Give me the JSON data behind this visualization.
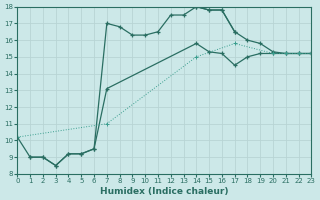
{
  "xlabel": "Humidex (Indice chaleur)",
  "bg_color": "#cce8e8",
  "grid_color": "#c0d8d8",
  "line_color": "#2a6e62",
  "dot_line_color": "#3a9e8e",
  "xlim": [
    0,
    23
  ],
  "ylim": [
    8,
    18
  ],
  "xticks": [
    0,
    1,
    2,
    3,
    4,
    5,
    6,
    7,
    8,
    9,
    10,
    11,
    12,
    13,
    14,
    15,
    16,
    17,
    18,
    19,
    20,
    21,
    22,
    23
  ],
  "yticks": [
    8,
    9,
    10,
    11,
    12,
    13,
    14,
    15,
    16,
    17,
    18
  ],
  "curve1": {
    "x": [
      1,
      2,
      3,
      4,
      5,
      6,
      7,
      8,
      9,
      10,
      11,
      12,
      13,
      14,
      15,
      16,
      17
    ],
    "y": [
      9.0,
      9.0,
      8.5,
      9.2,
      9.2,
      9.5,
      17.0,
      16.8,
      16.3,
      16.3,
      16.5,
      17.5,
      17.5,
      18.0,
      17.8,
      17.8,
      16.5
    ]
  },
  "curve2": {
    "x": [
      0,
      1,
      2,
      3,
      4,
      5,
      6,
      7,
      14,
      15,
      16,
      17,
      18,
      19,
      20,
      21,
      22,
      23
    ],
    "y": [
      10.2,
      9.0,
      9.0,
      8.5,
      9.2,
      9.2,
      9.5,
      13.1,
      15.8,
      15.3,
      15.2,
      14.5,
      15.0,
      15.2,
      15.2,
      15.2,
      15.2,
      15.2
    ]
  },
  "curve3": {
    "x": [
      14,
      15,
      16,
      17,
      18,
      19,
      20,
      21,
      22,
      23
    ],
    "y": [
      18.0,
      17.8,
      17.8,
      16.5,
      16.0,
      15.8,
      15.3,
      15.2,
      15.2,
      15.2
    ]
  },
  "curve4": {
    "x": [
      0,
      7,
      14,
      17,
      20,
      21,
      22,
      23
    ],
    "y": [
      10.2,
      11.0,
      15.0,
      15.8,
      15.2,
      15.2,
      15.2,
      15.2
    ]
  }
}
